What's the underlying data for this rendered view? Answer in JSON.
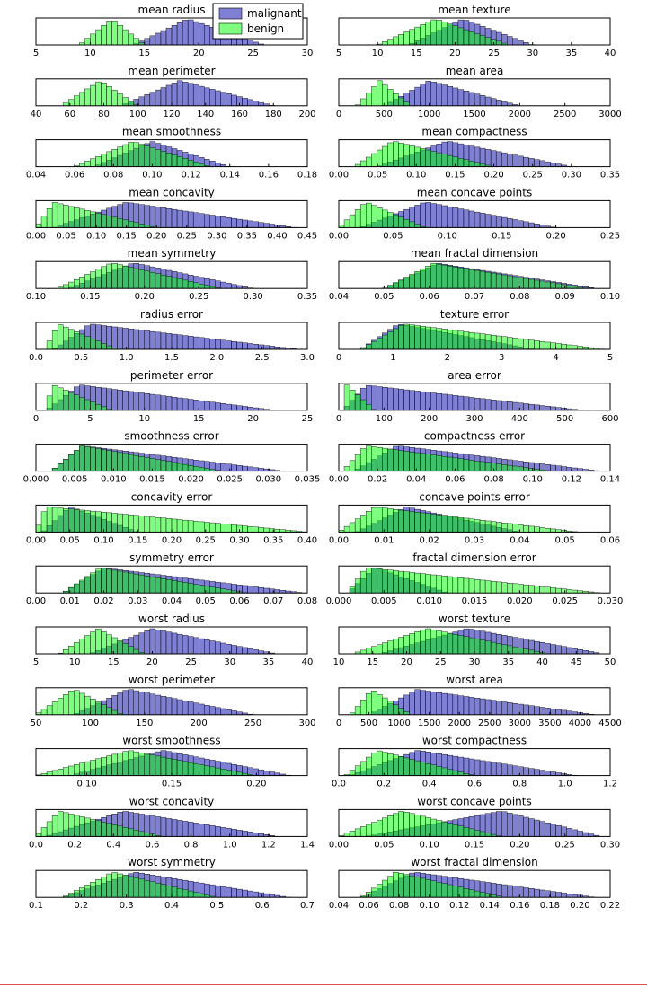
{
  "figure": {
    "legend": {
      "position": "top-center",
      "entries": [
        "malignant",
        "benign"
      ]
    },
    "colors": {
      "malignant": "#0000aa",
      "benign": "#00ff00",
      "opacity": 0.5,
      "axis": "#000000"
    }
  },
  "chart_data": [
    {
      "type": "bar",
      "title": "mean radius",
      "ticks": [
        5,
        10,
        15,
        20,
        25,
        30
      ],
      "xlim": [
        5,
        30
      ],
      "peaks": {
        "malignant": [
          14,
          19,
          26
        ],
        "benign": [
          9,
          12,
          15
        ]
      }
    },
    {
      "type": "bar",
      "title": "mean texture",
      "ticks": [
        5,
        10,
        15,
        20,
        25,
        30,
        35,
        40
      ],
      "xlim": [
        5,
        40
      ],
      "peaks": {
        "malignant": [
          14,
          21,
          30
        ],
        "benign": [
          10,
          17.5,
          27
        ]
      }
    },
    {
      "type": "bar",
      "title": "mean perimeter",
      "ticks": [
        40,
        60,
        80,
        100,
        120,
        140,
        160,
        180,
        200
      ],
      "xlim": [
        40,
        200
      ],
      "peaks": {
        "malignant": [
          90,
          125,
          180
        ],
        "benign": [
          55,
          78,
          100
        ]
      }
    },
    {
      "type": "bar",
      "title": "mean area",
      "ticks": [
        0,
        500,
        1000,
        1500,
        2000,
        2500,
        3000
      ],
      "xlim": [
        0,
        3000
      ],
      "peaks": {
        "malignant": [
          500,
          1000,
          2000
        ],
        "benign": [
          200,
          450,
          800
        ]
      }
    },
    {
      "type": "bar",
      "title": "mean smoothness",
      "ticks": [
        0.04,
        0.06,
        0.08,
        0.1,
        0.12,
        0.14,
        0.16,
        0.18
      ],
      "xlim": [
        0.04,
        0.18
      ],
      "peaks": {
        "malignant": [
          0.07,
          0.1,
          0.14
        ],
        "benign": [
          0.06,
          0.09,
          0.13
        ]
      }
    },
    {
      "type": "bar",
      "title": "mean compactness",
      "ticks": [
        0.0,
        0.05,
        0.1,
        0.15,
        0.2,
        0.25,
        0.3,
        0.35
      ],
      "xlim": [
        0,
        0.35
      ],
      "peaks": {
        "malignant": [
          0.05,
          0.14,
          0.3
        ],
        "benign": [
          0.02,
          0.07,
          0.2
        ]
      }
    },
    {
      "type": "bar",
      "title": "mean concavity",
      "ticks": [
        0.0,
        0.05,
        0.1,
        0.15,
        0.2,
        0.25,
        0.3,
        0.35,
        0.4,
        0.45
      ],
      "xlim": [
        0,
        0.45
      ],
      "peaks": {
        "malignant": [
          0.03,
          0.15,
          0.43
        ],
        "benign": [
          0.0,
          0.03,
          0.2
        ]
      }
    },
    {
      "type": "bar",
      "title": "mean concave points",
      "ticks": [
        0.0,
        0.05,
        0.1,
        0.15,
        0.2,
        0.25
      ],
      "xlim": [
        0,
        0.25
      ],
      "peaks": {
        "malignant": [
          0.02,
          0.08,
          0.2
        ],
        "benign": [
          0.0,
          0.025,
          0.08
        ]
      }
    },
    {
      "type": "bar",
      "title": "mean symmetry",
      "ticks": [
        0.1,
        0.15,
        0.2,
        0.25,
        0.3,
        0.35
      ],
      "xlim": [
        0.1,
        0.35
      ],
      "peaks": {
        "malignant": [
          0.13,
          0.19,
          0.3
        ],
        "benign": [
          0.12,
          0.17,
          0.27
        ]
      }
    },
    {
      "type": "bar",
      "title": "mean fractal dimension",
      "ticks": [
        0.04,
        0.05,
        0.06,
        0.07,
        0.08,
        0.09,
        0.1
      ],
      "xlim": [
        0.04,
        0.1
      ],
      "peaks": {
        "malignant": [
          0.05,
          0.062,
          0.097
        ],
        "benign": [
          0.05,
          0.061,
          0.095
        ]
      }
    },
    {
      "type": "bar",
      "title": "radius error",
      "ticks": [
        0.0,
        0.5,
        1.0,
        1.5,
        2.0,
        2.5,
        3.0
      ],
      "xlim": [
        0,
        3.0
      ],
      "peaks": {
        "malignant": [
          0.2,
          0.6,
          2.9
        ],
        "benign": [
          0.1,
          0.25,
          0.9
        ]
      }
    },
    {
      "type": "bar",
      "title": "texture error",
      "ticks": [
        0,
        1,
        2,
        3,
        4,
        5
      ],
      "xlim": [
        0,
        5
      ],
      "peaks": {
        "malignant": [
          0.4,
          1.1,
          3.6
        ],
        "benign": [
          0.4,
          1.2,
          4.9
        ]
      }
    },
    {
      "type": "bar",
      "title": "perimeter error",
      "ticks": [
        0,
        5,
        10,
        15,
        20,
        25
      ],
      "xlim": [
        0,
        25
      ],
      "peaks": {
        "malignant": [
          1,
          4,
          22
        ],
        "benign": [
          0.8,
          1.6,
          7
        ]
      }
    },
    {
      "type": "bar",
      "title": "area error",
      "ticks": [
        0,
        100,
        200,
        300,
        400,
        500,
        600
      ],
      "xlim": [
        0,
        600
      ],
      "peaks": {
        "malignant": [
          10,
          60,
          540
        ],
        "benign": [
          7,
          18,
          80
        ]
      }
    },
    {
      "type": "bar",
      "title": "smoothness error",
      "ticks": [
        0.0,
        0.005,
        0.01,
        0.015,
        0.02,
        0.025,
        0.03,
        0.035
      ],
      "xlim": [
        0,
        0.035
      ],
      "peaks": {
        "malignant": [
          0.002,
          0.006,
          0.032
        ],
        "benign": [
          0.002,
          0.006,
          0.024
        ]
      }
    },
    {
      "type": "bar",
      "title": "compactness error",
      "ticks": [
        0.0,
        0.02,
        0.04,
        0.06,
        0.08,
        0.1,
        0.12,
        0.14
      ],
      "xlim": [
        0,
        0.14
      ],
      "peaks": {
        "malignant": [
          0.008,
          0.03,
          0.135
        ],
        "benign": [
          0.002,
          0.014,
          0.11
        ]
      }
    },
    {
      "type": "bar",
      "title": "concavity error",
      "ticks": [
        0.0,
        0.05,
        0.1,
        0.15,
        0.2,
        0.25,
        0.3,
        0.35,
        0.4
      ],
      "xlim": [
        0,
        0.4
      ],
      "peaks": {
        "malignant": [
          0.01,
          0.05,
          0.15
        ],
        "benign": [
          0.0,
          0.015,
          0.4
        ]
      }
    },
    {
      "type": "bar",
      "title": "concave points error",
      "ticks": [
        0.0,
        0.01,
        0.02,
        0.03,
        0.04,
        0.05,
        0.06
      ],
      "xlim": [
        0,
        0.06
      ],
      "peaks": {
        "malignant": [
          0.004,
          0.015,
          0.04
        ],
        "benign": [
          0.0,
          0.008,
          0.053
        ]
      }
    },
    {
      "type": "bar",
      "title": "symmetry error",
      "ticks": [
        0.0,
        0.01,
        0.02,
        0.03,
        0.04,
        0.05,
        0.06,
        0.07,
        0.08
      ],
      "xlim": [
        0,
        0.08
      ],
      "peaks": {
        "malignant": [
          0.008,
          0.02,
          0.079
        ],
        "benign": [
          0.008,
          0.019,
          0.062
        ]
      }
    },
    {
      "type": "bar",
      "title": "fractal dimension error",
      "ticks": [
        0.0,
        0.005,
        0.01,
        0.015,
        0.02,
        0.025,
        0.03
      ],
      "xlim": [
        0,
        0.03
      ],
      "peaks": {
        "malignant": [
          0.001,
          0.004,
          0.012
        ],
        "benign": [
          0.001,
          0.003,
          0.029
        ]
      }
    },
    {
      "type": "bar",
      "title": "worst radius",
      "ticks": [
        5,
        10,
        15,
        20,
        25,
        30,
        35,
        40
      ],
      "xlim": [
        5,
        40
      ],
      "peaks": {
        "malignant": [
          12,
          20,
          36
        ],
        "benign": [
          8,
          13,
          19
        ]
      }
    },
    {
      "type": "bar",
      "title": "worst texture",
      "ticks": [
        10,
        15,
        20,
        25,
        30,
        35,
        40,
        45,
        50
      ],
      "xlim": [
        10,
        50
      ],
      "peaks": {
        "malignant": [
          16,
          29,
          49
        ],
        "benign": [
          12,
          23,
          41
        ]
      }
    },
    {
      "type": "bar",
      "title": "worst perimeter",
      "ticks": [
        50,
        100,
        150,
        200,
        250,
        300
      ],
      "xlim": [
        50,
        300
      ],
      "peaks": {
        "malignant": [
          85,
          135,
          250
        ],
        "benign": [
          50,
          85,
          130
        ]
      }
    },
    {
      "type": "bar",
      "title": "worst area",
      "ticks": [
        0,
        500,
        1000,
        1500,
        2000,
        2500,
        3000,
        3500,
        4000,
        4500
      ],
      "xlim": [
        0,
        4500
      ],
      "peaks": {
        "malignant": [
          500,
          1300,
          4250
        ],
        "benign": [
          200,
          550,
          1200
        ]
      }
    },
    {
      "type": "bar",
      "title": "worst smoothness",
      "ticks": [
        0.1,
        0.15,
        0.2
      ],
      "xlim": [
        0.07,
        0.23
      ],
      "peaks": {
        "malignant": [
          0.09,
          0.145,
          0.22
        ],
        "benign": [
          0.07,
          0.125,
          0.2
        ]
      }
    },
    {
      "type": "bar",
      "title": "worst compactness",
      "ticks": [
        0.0,
        0.2,
        0.4,
        0.6,
        0.8,
        1.0,
        1.2
      ],
      "xlim": [
        0,
        1.2
      ],
      "peaks": {
        "malignant": [
          0.05,
          0.35,
          1.05
        ],
        "benign": [
          0.03,
          0.17,
          0.6
        ]
      }
    },
    {
      "type": "bar",
      "title": "worst concavity",
      "ticks": [
        0.0,
        0.2,
        0.4,
        0.6,
        0.8,
        1.0,
        1.2,
        1.4
      ],
      "xlim": [
        0,
        1.4
      ],
      "peaks": {
        "malignant": [
          0.05,
          0.45,
          1.25
        ],
        "benign": [
          0.0,
          0.12,
          0.65
        ]
      }
    },
    {
      "type": "bar",
      "title": "worst concave points",
      "ticks": [
        0.0,
        0.05,
        0.1,
        0.15,
        0.2,
        0.25,
        0.3
      ],
      "xlim": [
        0,
        0.3
      ],
      "peaks": {
        "malignant": [
          0.03,
          0.18,
          0.29
        ],
        "benign": [
          0.0,
          0.07,
          0.18
        ]
      }
    },
    {
      "type": "bar",
      "title": "worst symmetry",
      "ticks": [
        0.1,
        0.2,
        0.3,
        0.4,
        0.5,
        0.6,
        0.7
      ],
      "xlim": [
        0.1,
        0.7
      ],
      "peaks": {
        "malignant": [
          0.16,
          0.32,
          0.66
        ],
        "benign": [
          0.16,
          0.27,
          0.5
        ]
      }
    },
    {
      "type": "bar",
      "title": "worst fractal dimension",
      "ticks": [
        0.04,
        0.06,
        0.08,
        0.1,
        0.12,
        0.14,
        0.16,
        0.18,
        0.2,
        0.22
      ],
      "xlim": [
        0.04,
        0.22
      ],
      "peaks": {
        "malignant": [
          0.055,
          0.09,
          0.21
        ],
        "benign": [
          0.055,
          0.078,
          0.15
        ]
      }
    }
  ]
}
